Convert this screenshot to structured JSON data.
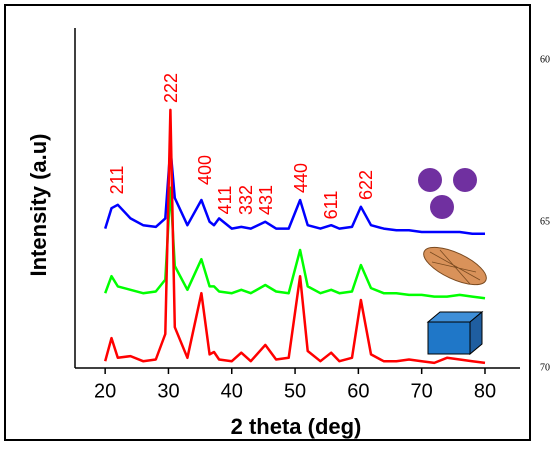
{
  "chart_data": {
    "type": "line",
    "x_label": "2 theta (deg)",
    "y_label": "Intensity (a.u)",
    "xlim": [
      15,
      85.5
    ],
    "xticks": [
      20,
      30,
      40,
      50,
      60,
      70,
      80
    ],
    "ylim": [
      0,
      100
    ],
    "x": [
      20,
      21,
      22,
      24,
      26,
      28,
      29.5,
      30.3,
      31,
      33,
      35.2,
      36.5,
      37.2,
      38,
      40,
      41.5,
      43,
      45.3,
      47,
      49,
      50.8,
      52,
      54,
      55.7,
      57,
      59,
      60.4,
      62,
      64,
      66,
      68,
      70,
      72,
      74,
      76,
      78,
      80
    ],
    "series": [
      {
        "color": "#0000ff",
        "values": [
          41,
          47,
          48,
          44,
          42,
          41.5,
          44,
          64.7,
          50,
          42,
          49.4,
          43,
          42,
          44,
          41,
          41.5,
          41,
          43,
          41,
          41,
          49.4,
          42,
          41,
          42,
          41,
          41.5,
          47.4,
          42,
          41,
          40.5,
          40.5,
          40,
          40,
          40,
          40,
          39.5,
          39.5
        ]
      },
      {
        "color": "#00ff00",
        "values": [
          22,
          27,
          24,
          23,
          22,
          22.5,
          26,
          53,
          30,
          23,
          32,
          24,
          24,
          22.5,
          22,
          23,
          22,
          24.4,
          22.5,
          22,
          34.7,
          24,
          22,
          23,
          22,
          22.5,
          30.3,
          23.5,
          22,
          22,
          21.5,
          21.5,
          21,
          21,
          21.5,
          21,
          20.5
        ]
      },
      {
        "color": "#ff0000",
        "values": [
          2,
          8.8,
          3,
          3.5,
          2,
          2.5,
          10,
          75.9,
          12,
          3,
          22,
          4,
          4.7,
          2.5,
          2,
          4.5,
          2,
          6.8,
          2.5,
          3,
          27,
          5,
          2,
          4.5,
          2,
          3,
          20,
          4,
          2,
          2,
          2.5,
          2,
          1.5,
          3,
          2.5,
          2,
          1.5
        ]
      }
    ],
    "annotations": [
      "211",
      "222",
      "400",
      "411",
      "332",
      "431",
      "440",
      "611",
      "622"
    ]
  },
  "margin_numbers": [
    "60",
    "65",
    "70"
  ]
}
